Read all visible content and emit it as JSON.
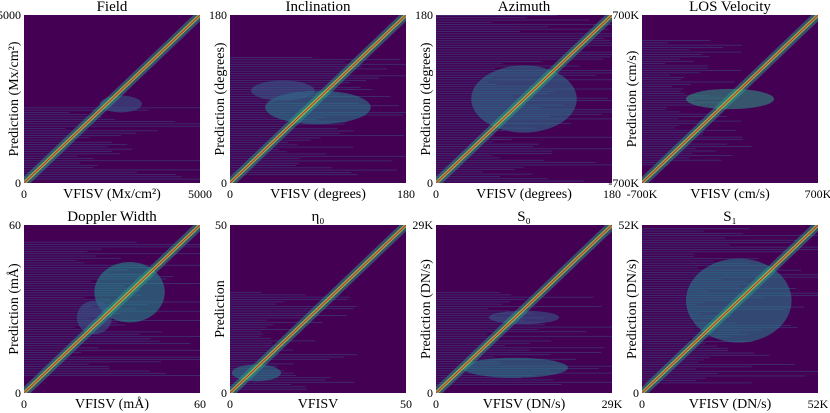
{
  "figure": {
    "background_color": "#440154",
    "diagonal_color": "#d62728",
    "xlabel_prefix": "VFISV"
  },
  "chart_data": [
    {
      "type": "heatmap",
      "title": "Field",
      "xlabel": "VFISV (Mx/cm²)",
      "ylabel": "Prediction (Mx/cm²)",
      "xlim": [
        0,
        5000
      ],
      "ylim": [
        0,
        5000
      ],
      "x_ticks": [
        "0",
        "5000"
      ],
      "y_ticks": [
        "0",
        "5000"
      ]
    },
    {
      "type": "heatmap",
      "title": "Inclination",
      "xlabel": "VFISV (degrees)",
      "ylabel": "Prediction (degrees)",
      "xlim": [
        0,
        180
      ],
      "ylim": [
        0,
        180
      ],
      "x_ticks": [
        "0",
        "180"
      ],
      "y_ticks": [
        "0",
        "180"
      ]
    },
    {
      "type": "heatmap",
      "title": "Azimuth",
      "xlabel": "VFISV (degrees)",
      "ylabel": "Prediction (degrees)",
      "xlim": [
        0,
        180
      ],
      "ylim": [
        0,
        180
      ],
      "x_ticks": [
        "0",
        "180"
      ],
      "y_ticks": [
        "0",
        "180"
      ]
    },
    {
      "type": "heatmap",
      "title": "LOS Velocity",
      "xlabel": "VFISV (cm/s)",
      "ylabel": "Prediction (cm/s)",
      "xlim": [
        -700000,
        700000
      ],
      "ylim": [
        -700000,
        700000
      ],
      "x_ticks": [
        "-700K",
        "700K"
      ],
      "y_ticks": [
        "-700K",
        "700K"
      ]
    },
    {
      "type": "heatmap",
      "title": "Doppler Width",
      "xlabel": "VFISV (mÅ)",
      "ylabel": "Prediction (mÅ)",
      "xlim": [
        0,
        60
      ],
      "ylim": [
        0,
        60
      ],
      "x_ticks": [
        "0",
        "60"
      ],
      "y_ticks": [
        "0",
        "60"
      ]
    },
    {
      "type": "heatmap",
      "title": "η₀",
      "xlabel": "VFISV",
      "ylabel": "Prediction",
      "xlim": [
        0,
        50
      ],
      "ylim": [
        0,
        50
      ],
      "x_ticks": [
        "0",
        "50"
      ],
      "y_ticks": [
        "0",
        "50"
      ]
    },
    {
      "type": "heatmap",
      "title": "S₀",
      "xlabel": "VFISV (DN/s)",
      "ylabel": "Prediction (DN/s)",
      "xlim": [
        0,
        29000
      ],
      "ylim": [
        0,
        29000
      ],
      "x_ticks": [
        "0",
        "29K"
      ],
      "y_ticks": [
        "0",
        "29K"
      ]
    },
    {
      "type": "heatmap",
      "title": "S₁",
      "xlabel": "VFISV (DN/s)",
      "ylabel": "Prediction (DN/s)",
      "xlim": [
        0,
        52000
      ],
      "ylim": [
        0,
        52000
      ],
      "x_ticks": [
        "0",
        "52K"
      ],
      "y_ticks": [
        "0",
        "52K"
      ]
    }
  ]
}
